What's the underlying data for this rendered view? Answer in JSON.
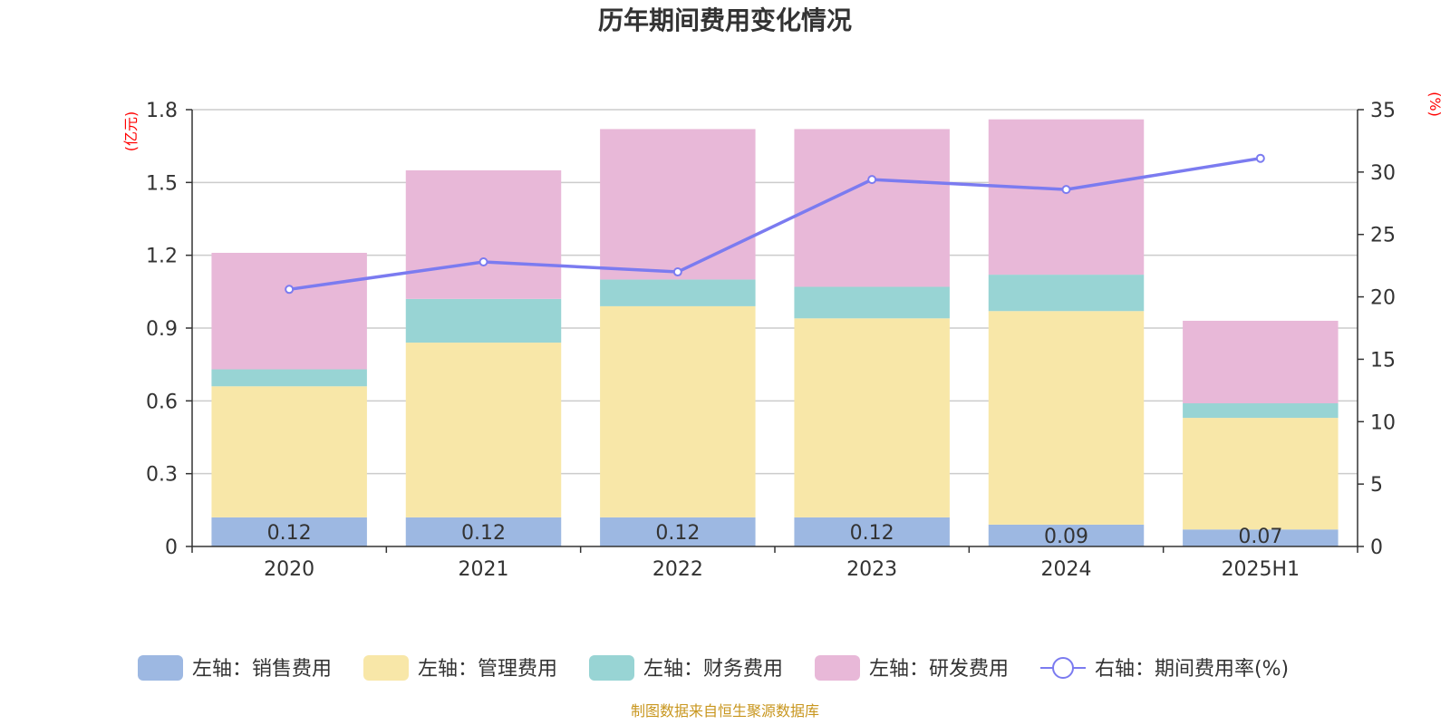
{
  "chart_data": {
    "type": "bar",
    "title": "历年期间费用变化情况",
    "categories": [
      "2020",
      "2021",
      "2022",
      "2023",
      "2024",
      "2025H1"
    ],
    "left_axis": {
      "unit": "(亿元)",
      "ticks": [
        "0",
        "0.3",
        "0.6",
        "0.9",
        "1.2",
        "1.5",
        "1.8"
      ],
      "ylim": [
        0,
        1.8
      ]
    },
    "right_axis": {
      "unit": "(%)",
      "ticks": [
        "0",
        "5",
        "10",
        "15",
        "20",
        "25",
        "30",
        "35"
      ],
      "ylim": [
        0,
        35
      ]
    },
    "grid": true,
    "legend_position": "bottom",
    "series": [
      {
        "name": "左轴：销售费用",
        "type": "bar",
        "stack": true,
        "color": "#9db8e2",
        "values": [
          0.12,
          0.12,
          0.12,
          0.12,
          0.09,
          0.07
        ],
        "labels": [
          "0.12",
          "0.12",
          "0.12",
          "0.12",
          "0.09",
          "0.07"
        ]
      },
      {
        "name": "左轴：管理费用",
        "type": "bar",
        "stack": true,
        "color": "#f8e7a8",
        "values": [
          0.54,
          0.72,
          0.87,
          0.82,
          0.88,
          0.46
        ]
      },
      {
        "name": "左轴：财务费用",
        "type": "bar",
        "stack": true,
        "color": "#98d4d4",
        "values": [
          0.07,
          0.18,
          0.11,
          0.13,
          0.15,
          0.06
        ]
      },
      {
        "name": "左轴：研发费用",
        "type": "bar",
        "stack": true,
        "color": "#e8b8d8",
        "values": [
          0.48,
          0.53,
          0.62,
          0.65,
          0.64,
          0.34
        ]
      },
      {
        "name": "右轴：期间费用率(%)",
        "type": "line",
        "axis": "right",
        "color": "#7b7bf0",
        "values": [
          20.6,
          22.8,
          22.0,
          29.4,
          28.6,
          31.1
        ]
      }
    ],
    "source": "制图数据来自恒生聚源数据库"
  }
}
